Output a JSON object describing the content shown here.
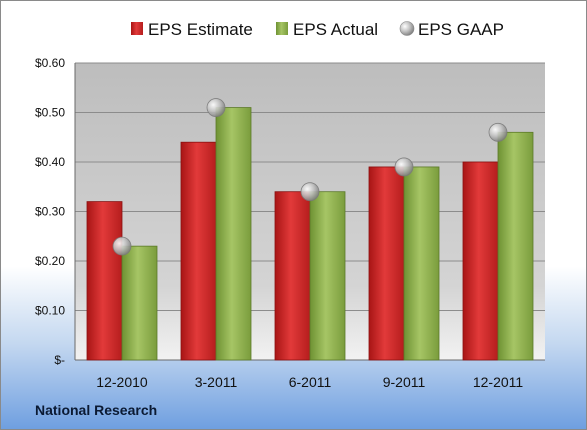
{
  "chart_data": {
    "type": "bar",
    "categories": [
      "12-2010",
      "3-2011",
      "6-2011",
      "9-2011",
      "12-2011"
    ],
    "series": [
      {
        "name": "EPS Estimate",
        "values": [
          0.32,
          0.44,
          0.34,
          0.39,
          0.4
        ],
        "color": "#d42a2a"
      },
      {
        "name": "EPS Actual",
        "values": [
          0.23,
          0.51,
          0.34,
          0.39,
          0.46
        ],
        "color": "#8db04a"
      },
      {
        "name": "EPS GAAP",
        "values": [
          0.23,
          0.51,
          0.34,
          0.39,
          0.46
        ],
        "color": "#b9b9b9",
        "marker": "sphere"
      }
    ],
    "ylim": [
      0,
      0.6
    ],
    "yticks": [
      0,
      0.1,
      0.2,
      0.3,
      0.4,
      0.5,
      0.6
    ],
    "ytick_labels": [
      "$-",
      "$0.10",
      "$0.20",
      "$0.30",
      "$0.40",
      "$0.50",
      "$0.60"
    ],
    "legend": "top",
    "grid": true
  },
  "footer": {
    "label": "National Research"
  }
}
